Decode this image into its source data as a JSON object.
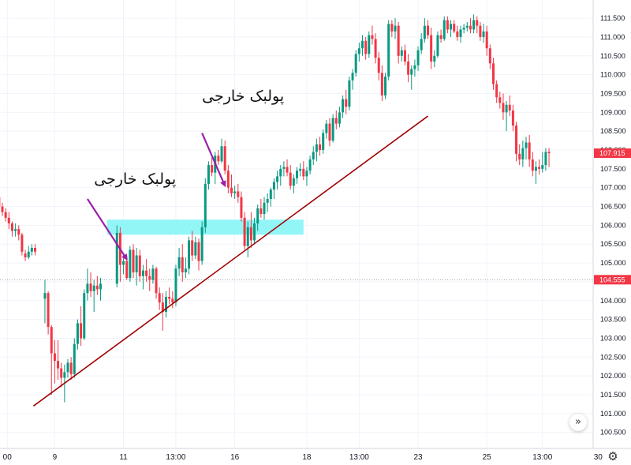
{
  "chart_data": {
    "type": "candlestick",
    "y_axis_ticks": [
      "111.500",
      "111.000",
      "110.500",
      "110.000",
      "109.500",
      "109.000",
      "108.500",
      "108.000",
      "107.500",
      "107.000",
      "106.500",
      "106.000",
      "105.500",
      "105.000",
      "104.500",
      "104.000",
      "103.500",
      "103.000",
      "102.500",
      "102.000",
      "101.500",
      "101.000",
      "100.500"
    ],
    "y_tick_values": [
      111.5,
      111.0,
      110.5,
      110.0,
      109.5,
      109.0,
      108.5,
      108.0,
      107.5,
      107.0,
      106.5,
      106.0,
      105.5,
      105.0,
      104.5,
      104.0,
      103.5,
      103.0,
      102.5,
      102.0,
      101.5,
      101.0,
      100.5
    ],
    "ylim": [
      100.2,
      111.9
    ],
    "x_axis_ticks": [
      "00",
      "9",
      "11",
      "13:00",
      "16",
      "18",
      "13:00",
      "23",
      "25",
      "13:00",
      "30"
    ],
    "x_tick_positions": [
      1.5,
      16,
      37,
      53,
      71,
      93,
      109,
      127,
      148,
      165,
      182
    ],
    "bar_count": 189,
    "price_badges": [
      {
        "label": "107.915",
        "value": 107.915,
        "color": "#f23645"
      },
      {
        "label": "104.555",
        "value": 104.555,
        "color": "#f23645"
      }
    ],
    "horizontal_line": {
      "value": 104.555
    },
    "up_color": "#089981",
    "down_color": "#f23645",
    "candles": [
      [
        -1,
        106.75,
        106.85,
        106.4,
        106.5
      ],
      [
        0,
        106.5,
        106.6,
        106.25,
        106.35
      ],
      [
        1,
        106.35,
        106.45,
        106.1,
        106.2
      ],
      [
        2,
        106.2,
        106.35,
        105.9,
        106.05
      ],
      [
        3,
        106.05,
        106.1,
        105.7,
        105.85
      ],
      [
        4,
        105.85,
        106.05,
        105.7,
        105.9
      ],
      [
        5,
        105.9,
        106.0,
        105.6,
        105.75
      ],
      [
        6,
        105.75,
        105.8,
        105.2,
        105.3
      ],
      [
        7,
        105.25,
        105.35,
        105.05,
        105.15
      ],
      [
        8,
        105.15,
        105.45,
        105.1,
        105.3
      ],
      [
        9,
        105.3,
        105.5,
        105.2,
        105.4
      ],
      [
        10,
        105.4,
        105.5,
        105.2,
        105.3
      ],
      [
        13,
        104.05,
        104.55,
        103.4,
        104.2
      ],
      [
        14,
        104.2,
        104.25,
        103.1,
        103.3
      ],
      [
        15,
        103.3,
        103.35,
        101.5,
        102.6
      ],
      [
        16,
        102.6,
        102.95,
        101.8,
        102.4
      ],
      [
        17,
        102.4,
        102.95,
        101.9,
        102.2
      ],
      [
        18,
        102.2,
        102.35,
        101.7,
        101.95
      ],
      [
        19,
        101.95,
        102.3,
        101.3,
        102.1
      ],
      [
        20,
        102.1,
        102.45,
        101.95,
        102.35
      ],
      [
        21,
        102.35,
        102.5,
        101.9,
        102.05
      ],
      [
        22,
        102.05,
        103.0,
        101.95,
        102.85
      ],
      [
        23,
        102.85,
        103.5,
        102.7,
        103.4
      ],
      [
        24,
        103.4,
        103.85,
        102.8,
        103.0
      ],
      [
        25,
        103.0,
        104.3,
        102.95,
        104.2
      ],
      [
        26,
        104.2,
        104.85,
        104.0,
        104.45
      ],
      [
        27,
        104.45,
        104.75,
        104.1,
        104.25
      ],
      [
        28,
        104.25,
        104.55,
        103.7,
        104.4
      ],
      [
        29,
        104.4,
        104.65,
        104.15,
        104.3
      ],
      [
        30,
        104.3,
        104.6,
        104.0,
        104.45
      ],
      [
        35,
        104.45,
        106.0,
        104.35,
        105.8
      ],
      [
        36,
        105.8,
        105.95,
        104.5,
        104.95
      ],
      [
        37,
        104.95,
        105.25,
        104.7,
        105.05
      ],
      [
        38,
        105.05,
        105.2,
        104.55,
        104.6
      ],
      [
        39,
        104.6,
        105.45,
        104.5,
        105.35
      ],
      [
        40,
        105.35,
        105.5,
        104.6,
        104.75
      ],
      [
        41,
        104.75,
        105.4,
        104.4,
        105.2
      ],
      [
        42,
        105.2,
        105.35,
        104.5,
        104.65
      ],
      [
        43,
        104.65,
        104.95,
        104.3,
        104.8
      ],
      [
        44,
        104.8,
        105.1,
        104.5,
        104.65
      ],
      [
        45,
        104.65,
        104.85,
        104.25,
        104.55
      ],
      [
        46,
        104.55,
        104.95,
        104.45,
        104.85
      ],
      [
        47,
        104.85,
        104.9,
        104.05,
        104.2
      ],
      [
        48,
        104.2,
        104.35,
        103.75,
        103.95
      ],
      [
        49,
        103.95,
        104.2,
        103.2,
        103.7
      ],
      [
        50,
        103.7,
        104.25,
        103.55,
        104.1
      ],
      [
        51,
        104.1,
        104.35,
        103.9,
        104.05
      ],
      [
        52,
        104.05,
        104.25,
        103.8,
        103.95
      ],
      [
        53,
        103.95,
        104.95,
        103.85,
        104.85
      ],
      [
        54,
        104.85,
        105.4,
        104.65,
        105.15
      ],
      [
        55,
        105.15,
        105.5,
        104.5,
        104.75
      ],
      [
        56,
        104.75,
        105.15,
        104.6,
        104.85
      ],
      [
        57,
        104.85,
        105.7,
        104.7,
        105.6
      ],
      [
        58,
        105.6,
        105.85,
        105.05,
        105.2
      ],
      [
        59,
        105.2,
        105.7,
        105.1,
        105.55
      ],
      [
        60,
        105.55,
        105.65,
        104.8,
        105.05
      ],
      [
        61,
        105.05,
        106.1,
        104.95,
        105.95
      ],
      [
        62,
        105.95,
        107.25,
        105.8,
        107.1
      ],
      [
        63,
        107.1,
        107.7,
        106.95,
        107.6
      ],
      [
        64,
        107.6,
        107.8,
        107.3,
        107.4
      ],
      [
        65,
        107.4,
        107.95,
        107.1,
        107.85
      ],
      [
        66,
        107.85,
        108.0,
        107.6,
        107.7
      ],
      [
        67,
        107.7,
        108.3,
        107.65,
        108.1
      ],
      [
        68,
        108.1,
        108.25,
        107.35,
        107.45
      ],
      [
        69,
        107.45,
        107.6,
        106.85,
        107.0
      ],
      [
        70,
        107.0,
        107.35,
        106.75,
        106.85
      ],
      [
        71,
        106.85,
        107.05,
        106.7,
        106.9
      ],
      [
        72,
        106.9,
        107.1,
        106.6,
        106.75
      ],
      [
        73,
        106.75,
        106.9,
        106.1,
        106.2
      ],
      [
        74,
        106.2,
        106.35,
        105.35,
        105.45
      ],
      [
        75,
        105.45,
        106.1,
        105.15,
        105.95
      ],
      [
        76,
        105.95,
        106.35,
        105.4,
        105.6
      ],
      [
        77,
        105.6,
        106.2,
        105.5,
        106.05
      ],
      [
        78,
        106.05,
        106.55,
        105.85,
        106.45
      ],
      [
        79,
        106.45,
        106.7,
        106.2,
        106.3
      ],
      [
        80,
        106.3,
        106.75,
        106.15,
        106.6
      ],
      [
        81,
        106.6,
        106.85,
        106.35,
        106.7
      ],
      [
        82,
        106.7,
        107.0,
        106.5,
        106.95
      ],
      [
        83,
        106.95,
        107.25,
        106.7,
        107.15
      ],
      [
        84,
        107.15,
        107.45,
        106.95,
        107.3
      ],
      [
        85,
        107.3,
        107.6,
        107.05,
        107.5
      ],
      [
        86,
        107.5,
        107.7,
        107.3,
        107.55
      ],
      [
        87,
        107.55,
        107.75,
        107.3,
        107.4
      ],
      [
        88,
        107.4,
        107.6,
        106.95,
        107.05
      ],
      [
        89,
        107.05,
        107.35,
        106.85,
        107.25
      ],
      [
        90,
        107.25,
        107.55,
        107.1,
        107.45
      ],
      [
        91,
        107.45,
        107.65,
        107.3,
        107.5
      ],
      [
        92,
        107.5,
        107.7,
        107.2,
        107.3
      ],
      [
        93,
        107.3,
        107.55,
        107.05,
        107.45
      ],
      [
        94,
        107.45,
        107.85,
        107.35,
        107.75
      ],
      [
        95,
        107.75,
        108.1,
        107.6,
        107.95
      ],
      [
        96,
        107.95,
        108.3,
        107.7,
        108.15
      ],
      [
        97,
        108.15,
        108.35,
        107.85,
        108.0
      ],
      [
        98,
        108.0,
        108.55,
        107.9,
        108.45
      ],
      [
        99,
        108.45,
        108.8,
        108.3,
        108.7
      ],
      [
        100,
        108.7,
        108.85,
        108.1,
        108.25
      ],
      [
        101,
        108.25,
        108.95,
        108.2,
        108.85
      ],
      [
        102,
        108.85,
        109.05,
        108.55,
        108.7
      ],
      [
        103,
        108.7,
        109.15,
        108.6,
        109.0
      ],
      [
        104,
        109.0,
        109.45,
        108.85,
        109.35
      ],
      [
        105,
        109.35,
        109.6,
        108.95,
        109.15
      ],
      [
        106,
        109.15,
        109.95,
        109.05,
        109.85
      ],
      [
        107,
        109.85,
        110.15,
        109.6,
        110.05
      ],
      [
        108,
        110.05,
        110.65,
        109.95,
        110.55
      ],
      [
        109,
        110.55,
        110.85,
        110.35,
        110.7
      ],
      [
        110,
        110.7,
        111.05,
        110.5,
        110.9
      ],
      [
        111,
        110.9,
        111.0,
        110.4,
        110.55
      ],
      [
        112,
        110.55,
        111.15,
        110.45,
        111.05
      ],
      [
        113,
        111.05,
        111.3,
        110.8,
        110.95
      ],
      [
        114,
        110.95,
        111.1,
        110.3,
        110.45
      ],
      [
        115,
        110.45,
        110.6,
        109.85,
        110.05
      ],
      [
        116,
        110.05,
        110.25,
        109.3,
        109.45
      ],
      [
        117,
        109.45,
        110.05,
        109.35,
        109.95
      ],
      [
        118,
        109.95,
        111.45,
        109.85,
        111.35
      ],
      [
        119,
        111.35,
        111.45,
        111.0,
        111.15
      ],
      [
        120,
        111.15,
        111.5,
        110.95,
        111.3
      ],
      [
        121,
        111.3,
        111.4,
        110.3,
        110.5
      ],
      [
        122,
        110.5,
        110.75,
        110.35,
        110.65
      ],
      [
        123,
        110.65,
        110.8,
        110.25,
        110.35
      ],
      [
        124,
        110.35,
        110.55,
        109.8,
        110.0
      ],
      [
        125,
        110.0,
        110.25,
        109.6,
        110.15
      ],
      [
        126,
        110.15,
        110.4,
        109.95,
        110.25
      ],
      [
        127,
        110.25,
        110.75,
        110.1,
        110.65
      ],
      [
        128,
        110.65,
        111.1,
        110.55,
        110.95
      ],
      [
        129,
        110.95,
        111.5,
        110.85,
        111.3
      ],
      [
        130,
        111.3,
        111.45,
        110.95,
        111.05
      ],
      [
        131,
        111.05,
        111.25,
        110.15,
        110.35
      ],
      [
        132,
        110.35,
        110.65,
        110.2,
        110.5
      ],
      [
        133,
        110.5,
        111.15,
        110.45,
        111.05
      ],
      [
        134,
        111.05,
        111.2,
        110.85,
        110.95
      ],
      [
        135,
        110.95,
        111.55,
        110.9,
        111.45
      ],
      [
        136,
        111.45,
        111.55,
        111.1,
        111.2
      ],
      [
        137,
        111.2,
        111.45,
        111.0,
        111.35
      ],
      [
        138,
        111.35,
        111.45,
        111.1,
        111.15
      ],
      [
        139,
        111.15,
        111.3,
        110.9,
        111.0
      ],
      [
        140,
        111.0,
        111.3,
        110.85,
        111.2
      ],
      [
        141,
        111.2,
        111.35,
        111.1,
        111.25
      ],
      [
        142,
        111.25,
        111.4,
        111.15,
        111.3
      ],
      [
        143,
        111.3,
        111.5,
        111.1,
        111.2
      ],
      [
        144,
        111.2,
        111.6,
        111.1,
        111.45
      ],
      [
        145,
        111.45,
        111.55,
        111.1,
        111.3
      ],
      [
        146,
        111.3,
        111.4,
        110.9,
        111.0
      ],
      [
        147,
        111.0,
        111.35,
        110.85,
        111.15
      ],
      [
        148,
        111.15,
        111.3,
        110.5,
        110.7
      ],
      [
        149,
        110.7,
        110.8,
        110.15,
        110.3
      ],
      [
        150,
        110.3,
        110.45,
        109.6,
        109.75
      ],
      [
        151,
        109.75,
        109.85,
        109.25,
        109.4
      ],
      [
        152,
        109.4,
        109.55,
        109.1,
        109.25
      ],
      [
        153,
        109.25,
        109.5,
        108.8,
        109.0
      ],
      [
        154,
        109.0,
        109.3,
        108.5,
        109.2
      ],
      [
        155,
        109.2,
        109.45,
        108.9,
        109.05
      ],
      [
        156,
        109.05,
        109.2,
        108.5,
        108.65
      ],
      [
        157,
        108.65,
        108.75,
        107.7,
        107.9
      ],
      [
        158,
        107.9,
        108.15,
        107.6,
        107.75
      ],
      [
        159,
        107.75,
        108.25,
        107.55,
        108.05
      ],
      [
        160,
        108.05,
        108.35,
        107.75,
        108.2
      ],
      [
        161,
        108.2,
        108.4,
        107.55,
        107.75
      ],
      [
        162,
        107.75,
        107.95,
        107.3,
        107.45
      ],
      [
        163,
        107.45,
        107.7,
        107.1,
        107.55
      ],
      [
        164,
        107.55,
        107.75,
        107.35,
        107.5
      ],
      [
        165,
        107.5,
        107.95,
        107.4,
        107.6
      ],
      [
        166,
        107.6,
        108.05,
        107.45,
        107.95
      ],
      [
        167,
        107.95,
        108.05,
        107.55,
        107.915
      ]
    ]
  },
  "overlays": {
    "trendline": {
      "start": [
        9.5,
        101.2
      ],
      "end": [
        130,
        108.9
      ],
      "color": "#a00000"
    },
    "zone": {
      "x_start": 32,
      "x_end": 92,
      "y_low": 105.75,
      "y_high": 106.15,
      "color": "#7ff5f5"
    },
    "annotations": [
      {
        "text": "پولبک خارجی",
        "anchor": [
          28,
          107.1
        ]
      },
      {
        "text": "پولبک خارجی",
        "anchor": [
          61,
          109.3
        ]
      }
    ],
    "arrows": [
      {
        "from": [
          26,
          106.7
        ],
        "to": [
          38,
          105.1
        ],
        "color": "#9b1fa9"
      },
      {
        "from": [
          61,
          108.45
        ],
        "to": [
          68,
          107.05
        ],
        "color": "#9b1fa9"
      }
    ]
  },
  "controls": {
    "scroll_glyph": "»",
    "settings_glyph": "⚙"
  }
}
